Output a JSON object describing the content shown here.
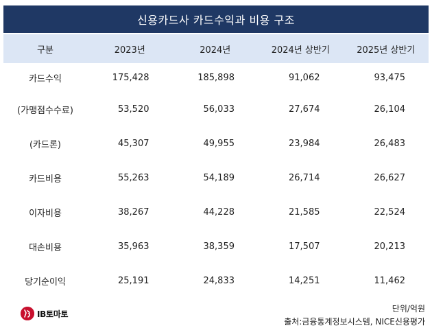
{
  "title": "신용카드사 카드수익과 비용 구조",
  "header": {
    "label": "구분",
    "columns": [
      "2023년",
      "2024년",
      "2024년 상반기",
      "2025년 상반기"
    ]
  },
  "rows": [
    {
      "label": "카드수익",
      "values": [
        "175,428",
        "185,898",
        "91,062",
        "93,475"
      ]
    },
    {
      "label": "(가맹점수수료)",
      "values": [
        "53,520",
        "56,033",
        "27,674",
        "26,104"
      ]
    },
    {
      "label": "(카드론)",
      "values": [
        "45,307",
        "49,955",
        "23,984",
        "26,483"
      ]
    },
    {
      "label": "카드비용",
      "values": [
        "55,263",
        "54,189",
        "26,714",
        "26,627"
      ]
    },
    {
      "label": "이자비용",
      "values": [
        "38,267",
        "44,228",
        "21,585",
        "22,524"
      ]
    },
    {
      "label": "대손비용",
      "values": [
        "35,963",
        "38,359",
        "17,507",
        "20,213"
      ]
    },
    {
      "label": "당기순이익",
      "values": [
        "25,191",
        "24,833",
        "14,251",
        "11,462"
      ]
    }
  ],
  "footer": {
    "logo_text": "IB토마토",
    "unit": "단위/억원",
    "source": "출처:금융통계정보시스템, NICE신용평가"
  },
  "colors": {
    "title_bg": "#1f3864",
    "header_bg": "#dce6f5",
    "logo_red": "#c8102e"
  },
  "chart_data": {
    "type": "table",
    "title": "신용카드사 카드수익과 비용 구조",
    "columns": [
      "2023년",
      "2024년",
      "2024년 상반기",
      "2025년 상반기"
    ],
    "rows": [
      {
        "name": "카드수익",
        "values": [
          175428,
          185898,
          91062,
          93475
        ]
      },
      {
        "name": "(가맹점수수료)",
        "values": [
          53520,
          56033,
          27674,
          26104
        ]
      },
      {
        "name": "(카드론)",
        "values": [
          45307,
          49955,
          23984,
          26483
        ]
      },
      {
        "name": "카드비용",
        "values": [
          55263,
          54189,
          26714,
          26627
        ]
      },
      {
        "name": "이자비용",
        "values": [
          38267,
          44228,
          21585,
          22524
        ]
      },
      {
        "name": "대손비용",
        "values": [
          35963,
          38359,
          17507,
          20213
        ]
      },
      {
        "name": "당기순이익",
        "values": [
          25191,
          24833,
          14251,
          11462
        ]
      }
    ],
    "unit": "단위/억원"
  }
}
